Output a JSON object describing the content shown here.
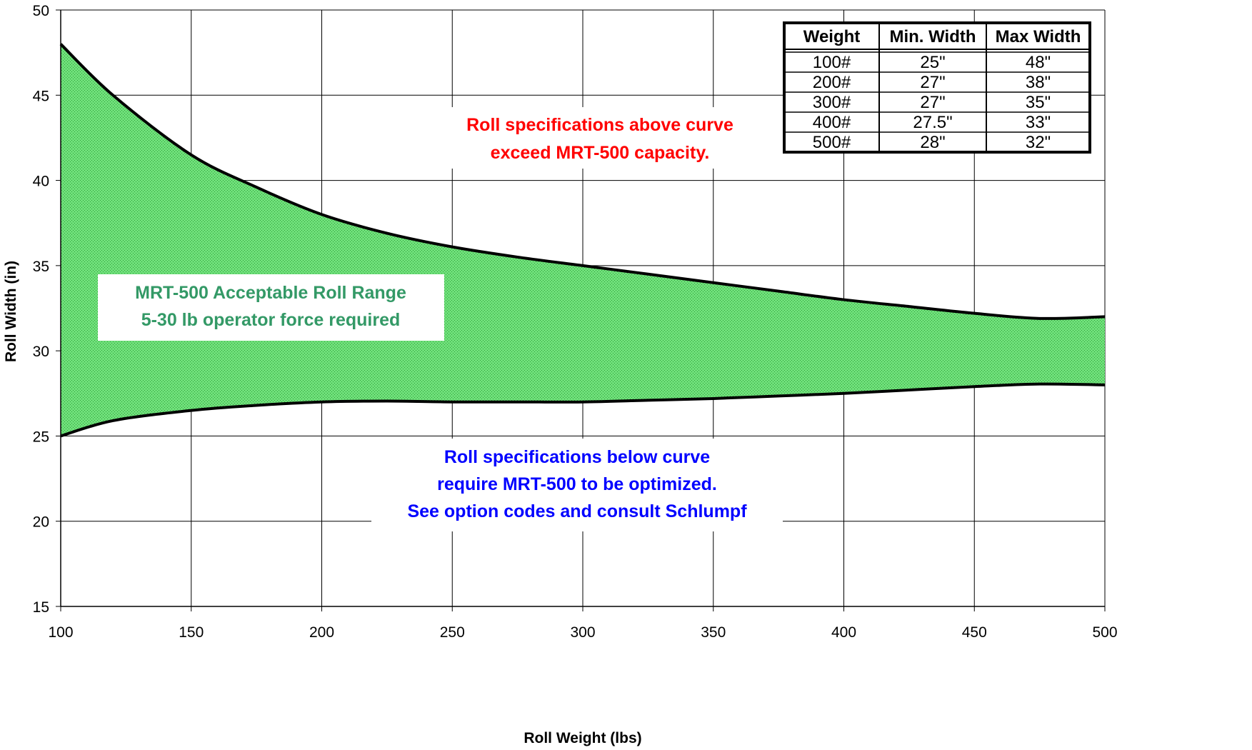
{
  "colors": {
    "band_fill": "#6fe07a",
    "band_stipple": "#2e9e3a",
    "curve": "#000000",
    "grid": "#000000",
    "above_text": "#ff0000",
    "acceptable_text": "#339966",
    "below_text": "#0000ff"
  },
  "chart_data": {
    "type": "area",
    "xlabel": "Roll Weight (lbs)",
    "ylabel": "Roll Width (in)",
    "xlim": [
      100,
      500
    ],
    "ylim": [
      15,
      50
    ],
    "xticks": [
      "100",
      "150",
      "200",
      "250",
      "300",
      "350",
      "400",
      "450",
      "500"
    ],
    "yticks": [
      "15",
      "20",
      "25",
      "30",
      "35",
      "40",
      "45",
      "50"
    ],
    "grid": true,
    "series": [
      {
        "role": "max",
        "x": [
          100,
          120,
          150,
          175,
          200,
          225,
          250,
          275,
          300,
          325,
          350,
          375,
          400,
          425,
          450,
          475,
          500
        ],
        "y": [
          48,
          45.0,
          41.5,
          39.6,
          38,
          36.9,
          36.1,
          35.5,
          35,
          34.5,
          34,
          33.5,
          33,
          32.6,
          32.2,
          31.9,
          32
        ]
      },
      {
        "role": "min",
        "x": [
          100,
          120,
          150,
          175,
          200,
          225,
          250,
          275,
          300,
          325,
          350,
          375,
          400,
          425,
          450,
          475,
          500
        ],
        "y": [
          25,
          25.9,
          26.5,
          26.8,
          27,
          27.05,
          27,
          27,
          27,
          27.1,
          27.2,
          27.35,
          27.5,
          27.7,
          27.9,
          28.05,
          28
        ]
      }
    ],
    "annotations": {
      "above": [
        "Roll specifications above curve",
        "exceed MRT-500 capacity."
      ],
      "acceptable": [
        "MRT-500 Acceptable Roll Range",
        "5-30 lb operator force required"
      ],
      "below": [
        "Roll specifications below curve",
        "require MRT-500 to be optimized.",
        "See option codes and consult Schlumpf"
      ]
    },
    "table": {
      "headers": [
        "Weight",
        "Min. Width",
        "Max Width"
      ],
      "rows": [
        [
          "100#",
          "25\"",
          "48\""
        ],
        [
          "200#",
          "27\"",
          "38\""
        ],
        [
          "300#",
          "27\"",
          "35\""
        ],
        [
          "400#",
          "27.5\"",
          "33\""
        ],
        [
          "500#",
          "28\"",
          "32\""
        ]
      ]
    }
  }
}
